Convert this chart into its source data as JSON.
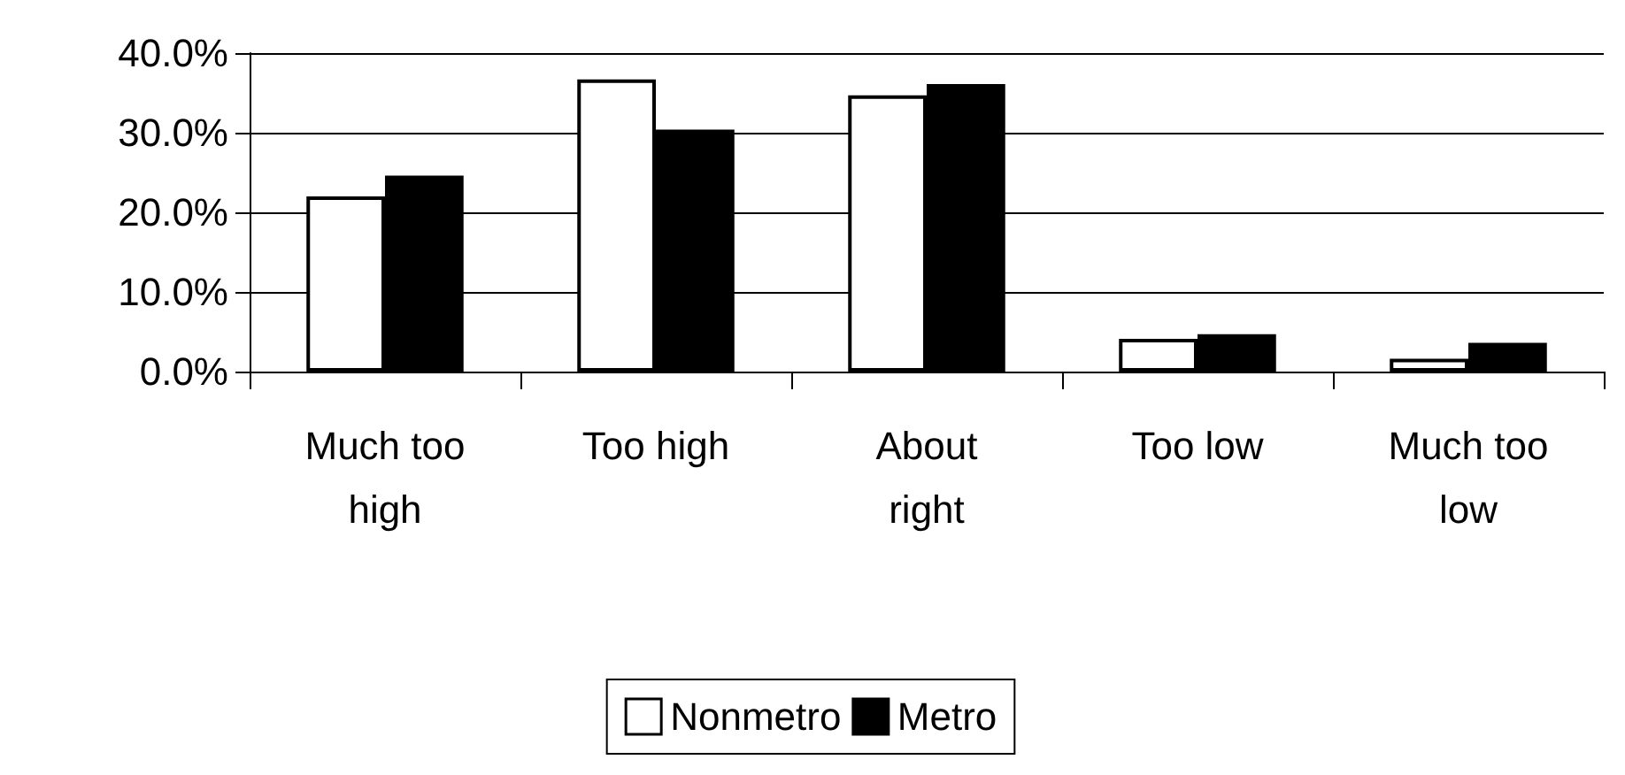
{
  "chart_data": {
    "type": "bar",
    "categories": [
      "Much too\nhigh",
      "Too high",
      "About\nright",
      "Too low",
      "Much too\nlow"
    ],
    "series": [
      {
        "name": "Nonmetro",
        "color": "#ffffff",
        "values": [
          22.0,
          36.7,
          34.7,
          4.1,
          1.6
        ]
      },
      {
        "name": "Metro",
        "color": "#000000",
        "values": [
          24.6,
          30.4,
          36.1,
          4.7,
          3.6
        ]
      }
    ],
    "ylim": [
      0,
      40
    ],
    "yticks": [
      {
        "value": 0,
        "label": "0.0%"
      },
      {
        "value": 10,
        "label": "10.0%"
      },
      {
        "value": 20,
        "label": "20.0%"
      },
      {
        "value": 30,
        "label": "30.0%"
      },
      {
        "value": 40,
        "label": "40.0%"
      }
    ],
    "grid": "y",
    "legend": "bottom"
  }
}
